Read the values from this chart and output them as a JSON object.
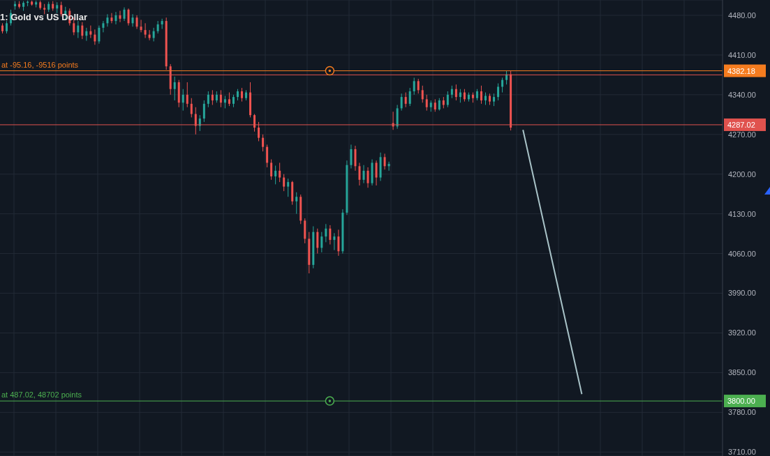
{
  "chart_data": {
    "type": "candlestick",
    "title": "1: Gold vs US Dollar",
    "categories": [
      null,
      null,
      null,
      null,
      null,
      null,
      null,
      null,
      null,
      null,
      null,
      null,
      null,
      null,
      null,
      null,
      null,
      null,
      null,
      null,
      null,
      null,
      null,
      null,
      null,
      null,
      null,
      null,
      null,
      null,
      null,
      null,
      null,
      null,
      null,
      null,
      null,
      null,
      null,
      null,
      null,
      null,
      null,
      null,
      null,
      null,
      null,
      null,
      null,
      null,
      null,
      null,
      null,
      null,
      null,
      null,
      null,
      null,
      null,
      null,
      null,
      null,
      null,
      null,
      null,
      null,
      null,
      null,
      null,
      null,
      null,
      null,
      null,
      null,
      null,
      null,
      null,
      null,
      null,
      null,
      null,
      null,
      null,
      null,
      null,
      null,
      null,
      null,
      null,
      null,
      null,
      null,
      null,
      null,
      null,
      null,
      null,
      null,
      null,
      null,
      null,
      null,
      null,
      null,
      null,
      null,
      null,
      null,
      null,
      null,
      null,
      null,
      null,
      null,
      null,
      null,
      null,
      null,
      null,
      null,
      null,
      null,
      null,
      null,
      null,
      null,
      null,
      null,
      null,
      null,
      null,
      null,
      null,
      null,
      null,
      null,
      null,
      null,
      null,
      null,
      null,
      null,
      null,
      null,
      null,
      null,
      null,
      null,
      null,
      null,
      null,
      null,
      null,
      null,
      null,
      null,
      null,
      null,
      null,
      null,
      null,
      null,
      null,
      null,
      null,
      null,
      null,
      null,
      null,
      null,
      null,
      null
    ],
    "ohlc": [
      [
        4462,
        4466,
        4448,
        4452
      ],
      [
        4452,
        4470,
        4448,
        4466
      ],
      [
        4466,
        4490,
        4462,
        4484
      ],
      [
        4496,
        4505,
        4490,
        4500
      ],
      [
        4500,
        4505,
        4492,
        4495
      ],
      [
        4495,
        4505,
        4488,
        4502
      ],
      [
        4502,
        4506,
        4496,
        4504
      ],
      [
        4504,
        4506,
        4497,
        4499
      ],
      [
        4499,
        4506,
        4494,
        4503
      ],
      [
        4503,
        4506,
        4490,
        4493
      ],
      [
        4493,
        4500,
        4482,
        4490
      ],
      [
        4490,
        4504,
        4486,
        4500
      ],
      [
        4500,
        4505,
        4488,
        4492
      ],
      [
        4492,
        4503,
        4484,
        4498
      ],
      [
        4498,
        4504,
        4478,
        4482
      ],
      [
        4482,
        4495,
        4472,
        4488
      ],
      [
        4488,
        4492,
        4462,
        4466
      ],
      [
        4466,
        4476,
        4445,
        4450
      ],
      [
        4450,
        4470,
        4440,
        4462
      ],
      [
        4462,
        4468,
        4438,
        4444
      ],
      [
        4444,
        4458,
        4435,
        4452
      ],
      [
        4452,
        4462,
        4440,
        4446
      ],
      [
        4446,
        4455,
        4428,
        4434
      ],
      [
        4434,
        4462,
        4430,
        4458
      ],
      [
        4458,
        4470,
        4450,
        4466
      ],
      [
        4466,
        4482,
        4460,
        4476
      ],
      [
        4476,
        4484,
        4466,
        4470
      ],
      [
        4470,
        4486,
        4464,
        4480
      ],
      [
        4480,
        4488,
        4468,
        4474
      ],
      [
        4474,
        4494,
        4470,
        4490
      ],
      [
        4490,
        4492,
        4462,
        4466
      ],
      [
        4466,
        4482,
        4460,
        4476
      ],
      [
        4476,
        4480,
        4456,
        4460
      ],
      [
        4460,
        4472,
        4450,
        4454
      ],
      [
        4454,
        4466,
        4440,
        4446
      ],
      [
        4446,
        4454,
        4436,
        4440
      ],
      [
        4440,
        4458,
        4434,
        4452
      ],
      [
        4452,
        4470,
        4448,
        4464
      ],
      [
        4464,
        4474,
        4456,
        4470
      ],
      [
        4470,
        4476,
        4384,
        4390
      ],
      [
        4390,
        4394,
        4340,
        4350
      ],
      [
        4350,
        4372,
        4330,
        4362
      ],
      [
        4362,
        4366,
        4318,
        4326
      ],
      [
        4326,
        4350,
        4312,
        4340
      ],
      [
        4340,
        4362,
        4318,
        4324
      ],
      [
        4324,
        4334,
        4300,
        4306
      ],
      [
        4306,
        4318,
        4270,
        4285
      ],
      [
        4285,
        4304,
        4276,
        4298
      ],
      [
        4298,
        4330,
        4292,
        4324
      ],
      [
        4324,
        4346,
        4318,
        4340
      ],
      [
        4340,
        4348,
        4322,
        4330
      ],
      [
        4330,
        4346,
        4326,
        4340
      ],
      [
        4340,
        4348,
        4318,
        4326
      ],
      [
        4326,
        4338,
        4316,
        4332
      ],
      [
        4332,
        4344,
        4320,
        4324
      ],
      [
        4324,
        4340,
        4318,
        4336
      ],
      [
        4336,
        4350,
        4330,
        4346
      ],
      [
        4346,
        4352,
        4328,
        4334
      ],
      [
        4334,
        4348,
        4330,
        4344
      ],
      [
        4344,
        4362,
        4300,
        4304
      ],
      [
        4304,
        4306,
        4275,
        4282
      ],
      [
        4282,
        4292,
        4258,
        4264
      ],
      [
        4264,
        4270,
        4240,
        4248
      ],
      [
        4248,
        4252,
        4212,
        4220
      ],
      [
        4220,
        4226,
        4190,
        4196
      ],
      [
        4196,
        4215,
        4182,
        4206
      ],
      [
        4206,
        4220,
        4186,
        4194
      ],
      [
        4194,
        4200,
        4170,
        4178
      ],
      [
        4178,
        4192,
        4160,
        4186
      ],
      [
        4186,
        4188,
        4146,
        4152
      ],
      [
        4152,
        4168,
        4130,
        4160
      ],
      [
        4160,
        4164,
        4112,
        4118
      ],
      [
        4118,
        4122,
        4078,
        4086
      ],
      [
        4086,
        4098,
        4025,
        4040
      ],
      [
        4040,
        4108,
        4034,
        4098
      ],
      [
        4098,
        4104,
        4060,
        4070
      ],
      [
        4070,
        4098,
        4062,
        4090
      ],
      [
        4090,
        4112,
        4080,
        4104
      ],
      [
        4104,
        4110,
        4076,
        4084
      ],
      [
        4084,
        4096,
        4066,
        4090
      ],
      [
        4090,
        4102,
        4056,
        4064
      ],
      [
        4064,
        4138,
        4060,
        4132
      ],
      [
        4132,
        4224,
        4128,
        4216
      ],
      [
        4216,
        4252,
        4210,
        4244
      ],
      [
        4244,
        4250,
        4206,
        4214
      ],
      [
        4214,
        4220,
        4180,
        4190
      ],
      [
        4190,
        4216,
        4184,
        4206
      ],
      [
        4206,
        4212,
        4176,
        4184
      ],
      [
        4184,
        4226,
        4180,
        4220
      ],
      [
        4220,
        4224,
        4180,
        4194
      ],
      [
        4194,
        4238,
        4188,
        4230
      ],
      [
        4230,
        4236,
        4208,
        4214
      ],
      [
        4214,
        4222,
        4206,
        4218
      ],
      [
        4290,
        4310,
        4278,
        4284
      ],
      [
        4284,
        4322,
        4280,
        4316
      ],
      [
        4316,
        4342,
        4312,
        4336
      ],
      [
        4336,
        4344,
        4318,
        4324
      ],
      [
        4324,
        4352,
        4320,
        4346
      ],
      [
        4346,
        4370,
        4340,
        4364
      ],
      [
        4364,
        4368,
        4342,
        4348
      ],
      [
        4348,
        4356,
        4326,
        4332
      ],
      [
        4332,
        4340,
        4312,
        4318
      ],
      [
        4318,
        4330,
        4310,
        4326
      ],
      [
        4326,
        4332,
        4310,
        4314
      ],
      [
        4314,
        4334,
        4312,
        4330
      ],
      [
        4330,
        4336,
        4316,
        4322
      ],
      [
        4322,
        4346,
        4318,
        4340
      ],
      [
        4340,
        4356,
        4334,
        4350
      ],
      [
        4350,
        4358,
        4330,
        4336
      ],
      [
        4336,
        4350,
        4326,
        4344
      ],
      [
        4344,
        4350,
        4328,
        4332
      ],
      [
        4332,
        4344,
        4328,
        4340
      ],
      [
        4340,
        4344,
        4326,
        4334
      ],
      [
        4334,
        4350,
        4330,
        4346
      ],
      [
        4346,
        4356,
        4324,
        4330
      ],
      [
        4330,
        4344,
        4322,
        4338
      ],
      [
        4338,
        4342,
        4322,
        4328
      ],
      [
        4328,
        4342,
        4320,
        4336
      ],
      [
        4336,
        4360,
        4330,
        4354
      ],
      [
        4354,
        4370,
        4344,
        4366
      ],
      [
        4366,
        4382,
        4358,
        4376
      ],
      [
        4376,
        4382,
        4277,
        4282
      ],
      null,
      null,
      null,
      null,
      null,
      null,
      null,
      null,
      null,
      null,
      null,
      null,
      null,
      null,
      null,
      null,
      null,
      null,
      null,
      null,
      null,
      null,
      null,
      null,
      null,
      null,
      null,
      null,
      null,
      null,
      null,
      null,
      null,
      null,
      null,
      null,
      null,
      null,
      null,
      null,
      null,
      null,
      null,
      null,
      null,
      null,
      null,
      null,
      null,
      null
    ],
    "colors": [
      "#ef5350",
      "#26a69a",
      "#26a69a",
      "#26a69a",
      "#ef5350",
      "#26a69a",
      "#26a69a",
      "#ef5350",
      "#26a69a",
      "#ef5350",
      "#ef5350",
      "#26a69a",
      "#ef5350",
      "#26a69a",
      "#ef5350",
      "#26a69a",
      "#ef5350",
      "#ef5350",
      "#26a69a",
      "#ef5350",
      "#26a69a",
      "#ef5350",
      "#ef5350",
      "#26a69a",
      "#26a69a",
      "#26a69a",
      "#ef5350",
      "#26a69a",
      "#ef5350",
      "#26a69a",
      "#ef5350",
      "#26a69a",
      "#ef5350",
      "#ef5350",
      "#ef5350",
      "#ef5350",
      "#26a69a",
      "#26a69a",
      "#26a69a",
      "#ef5350",
      "#ef5350",
      "#26a69a",
      "#ef5350",
      "#26a69a",
      "#ef5350",
      "#ef5350",
      "#ef5350",
      "#26a69a",
      "#26a69a",
      "#26a69a",
      "#ef5350",
      "#26a69a",
      "#ef5350",
      "#26a69a",
      "#ef5350",
      "#26a69a",
      "#26a69a",
      "#ef5350",
      "#26a69a",
      "#ef5350",
      "#ef5350",
      "#ef5350",
      "#ef5350",
      "#ef5350",
      "#ef5350",
      "#26a69a",
      "#ef5350",
      "#ef5350",
      "#26a69a",
      "#ef5350",
      "#26a69a",
      "#ef5350",
      "#ef5350",
      "#ef5350",
      "#26a69a",
      "#ef5350",
      "#26a69a",
      "#26a69a",
      "#ef5350",
      "#26a69a",
      "#ef5350",
      "#26a69a",
      "#26a69a",
      "#26a69a",
      "#ef5350",
      "#ef5350",
      "#26a69a",
      "#ef5350",
      "#26a69a",
      "#ef5350",
      "#26a69a",
      "#ef5350",
      "#26a69a",
      "#ef5350",
      "#26a69a",
      "#26a69a",
      "#ef5350",
      "#26a69a",
      "#26a69a",
      "#ef5350",
      "#ef5350",
      "#ef5350",
      "#26a69a",
      "#ef5350",
      "#26a69a",
      "#ef5350",
      "#26a69a",
      "#26a69a",
      "#ef5350",
      "#26a69a",
      "#ef5350",
      "#26a69a",
      "#ef5350",
      "#26a69a",
      "#ef5350",
      "#26a69a",
      "#ef5350",
      "#26a69a",
      "#26a69a",
      "#26a69a",
      "#26a69a",
      "#ef5350",
      null,
      null,
      null,
      null,
      null,
      null,
      null,
      null,
      null,
      null,
      null,
      null,
      null,
      null,
      null,
      null,
      null,
      null,
      null,
      null,
      null,
      null,
      null,
      null,
      null,
      null,
      null,
      null,
      null,
      null,
      null,
      null,
      null,
      null,
      null,
      null,
      null,
      null,
      null,
      null,
      null,
      null,
      null,
      null,
      null,
      null,
      null,
      null,
      null,
      null
    ],
    "series": [
      {
        "type": "line",
        "color": "#a9c3c8",
        "values": [
          null,
          null,
          null,
          null,
          null,
          null,
          null,
          null,
          null,
          null,
          null,
          null,
          null,
          null,
          null,
          null,
          null,
          null,
          null,
          null,
          null,
          null,
          null,
          null,
          null,
          null,
          null,
          null,
          null,
          null,
          null,
          null,
          null,
          null,
          null,
          null,
          null,
          null,
          null,
          null,
          null,
          null,
          null,
          null,
          null,
          null,
          null,
          null,
          null,
          null,
          null,
          null,
          null,
          null,
          null,
          null,
          null,
          null,
          null,
          null,
          null,
          null,
          null,
          null,
          null,
          null,
          null,
          null,
          null,
          null,
          null,
          null,
          null,
          null,
          null,
          null,
          null,
          null,
          null,
          null,
          null,
          null,
          null,
          null,
          null,
          null,
          null,
          null,
          null,
          null,
          null,
          null,
          null,
          null,
          null,
          null,
          null,
          null,
          null,
          null,
          null,
          null,
          null,
          null,
          null,
          null,
          null,
          null,
          null,
          null,
          null,
          null,
          null,
          null,
          null,
          null,
          null,
          null,
          null,
          null,
          null,
          null,
          null,
          null,
          4278,
          null,
          null,
          null,
          null,
          null,
          null,
          null,
          null,
          null,
          null,
          null,
          null,
          null,
          3812,
          null,
          null,
          null,
          null,
          null,
          null,
          null,
          null,
          null,
          null,
          null,
          null,
          null,
          null,
          null,
          null,
          null,
          null,
          null,
          null,
          null,
          null,
          null,
          null,
          null,
          null,
          null,
          null,
          null,
          null,
          null,
          null,
          null
        ]
      }
    ],
    "ylim": [
      3703,
      4507
    ],
    "yticks": [
      {
        "value": 3710,
        "label": "3710.00"
      },
      {
        "value": 3780,
        "label": "3780.00"
      },
      {
        "value": 3850,
        "label": "3850.00"
      },
      {
        "value": 3920,
        "label": "3920.00"
      },
      {
        "value": 3990,
        "label": "3990.00"
      },
      {
        "value": 4060,
        "label": "4060.00"
      },
      {
        "value": 4130,
        "label": "4130.00"
      },
      {
        "value": 4200,
        "label": "4200.00"
      },
      {
        "value": 4270,
        "label": "4270.00"
      },
      {
        "value": 4340,
        "label": "4340.00"
      },
      {
        "value": 4410,
        "label": "4410.00"
      },
      {
        "value": 4480,
        "label": "4480.00"
      }
    ],
    "grid": true,
    "ref_lines": [
      {
        "axis": "y",
        "value": 4382.18,
        "label": "4382.18",
        "color": "#f57c1f"
      },
      {
        "axis": "y",
        "value": 4375,
        "label": null,
        "color": "#e0524e"
      },
      {
        "axis": "y",
        "value": 4287.02,
        "label": "4287.02",
        "color": "#e0524e"
      },
      {
        "axis": "y",
        "value": 3800,
        "label": "3800.00",
        "color": "#4caf50"
      }
    ],
    "annotations": [
      {
        "text": "at -95.16, -9516 points",
        "y": 4382.18
      },
      {
        "text": "at 487.02, 48702 points",
        "y": 3800
      }
    ]
  }
}
